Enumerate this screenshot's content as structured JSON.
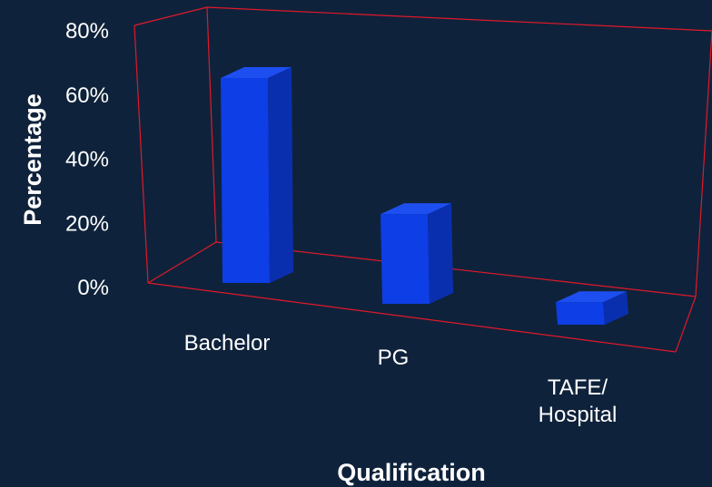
{
  "chart_data": {
    "type": "bar",
    "categories": [
      "Bachelor",
      "PG",
      "TAFE/\nHospital"
    ],
    "values": [
      64,
      28,
      7
    ],
    "xlabel": "Qualification",
    "ylabel": "Percentage",
    "ylim": [
      0,
      80
    ],
    "yticks": [
      "0%",
      "20%",
      "40%",
      "60%",
      "80%"
    ],
    "grid": false,
    "projection": "3d",
    "colors": {
      "background": "#0f223b",
      "frame": "#e0192a",
      "bar_front": "#0d3ee6",
      "bar_side": "#0a2fae",
      "bar_top": "#1d4ff0"
    }
  }
}
